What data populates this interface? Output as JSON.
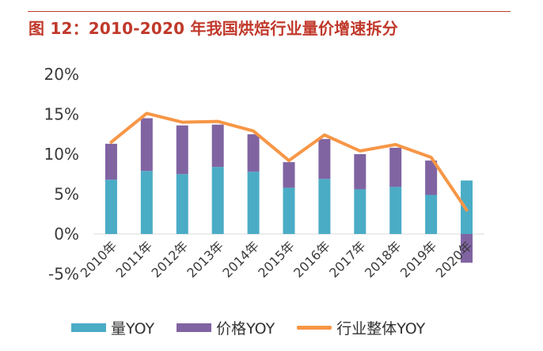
{
  "header": {
    "title": "图 12：2010-2020 年我国烘焙行业量价增速拆分"
  },
  "colors": {
    "title": "#c0392b",
    "volume": "#4bacc6",
    "price": "#8064a2",
    "overall": "#f79646"
  },
  "chart_data": {
    "type": "bar",
    "stacked": true,
    "title": "图 12：2010-2020 年我国烘焙行业量价增速拆分",
    "categories": [
      "2010年",
      "2011年",
      "2012年",
      "2013年",
      "2014年",
      "2015年",
      "2016年",
      "2017年",
      "2018年",
      "2019年",
      "2020年"
    ],
    "series": [
      {
        "name": "量YOY",
        "type": "bar",
        "values": [
          6.8,
          7.9,
          7.5,
          8.4,
          7.8,
          5.8,
          6.9,
          5.6,
          5.9,
          4.9,
          6.7
        ]
      },
      {
        "name": "价格YOY",
        "type": "bar",
        "values": [
          4.5,
          6.6,
          6.1,
          5.3,
          4.7,
          3.2,
          5.0,
          4.4,
          4.9,
          4.3,
          -3.6
        ]
      },
      {
        "name": "行业整体YOY",
        "type": "line",
        "values": [
          11.5,
          15.1,
          14.0,
          14.1,
          12.9,
          9.2,
          12.4,
          10.4,
          11.2,
          9.6,
          3.0
        ]
      }
    ],
    "ylim": [
      -5,
      20
    ],
    "yticks": [
      "-5%",
      "0%",
      "5%",
      "10%",
      "15%",
      "20%"
    ],
    "ytick_values": [
      -5,
      0,
      5,
      10,
      15,
      20
    ],
    "grid": false,
    "legend_position": "bottom"
  }
}
